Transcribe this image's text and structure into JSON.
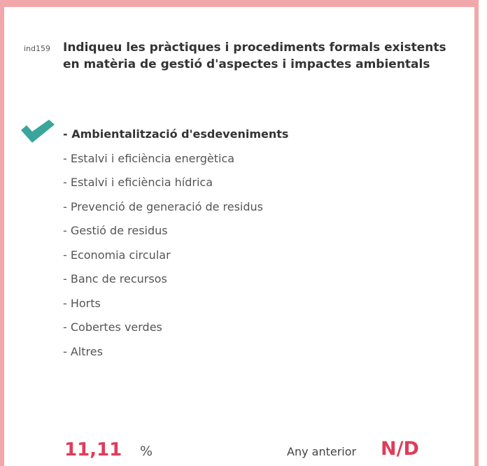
{
  "indicator": {
    "code": "ind159",
    "question": "Indiqueu les pràctiques i procediments formals existents en matèria de gestió d'aspectes i impactes ambientals",
    "options": [
      {
        "label": "- Ambientalització d'esdeveniments",
        "selected": true
      },
      {
        "label": "- Estalvi i eficiència energètica",
        "selected": false
      },
      {
        "label": "- Estalvi i eficiència hídrica",
        "selected": false
      },
      {
        "label": "- Prevenció de generació de residus",
        "selected": false
      },
      {
        "label": "- Gestió de residus",
        "selected": false
      },
      {
        "label": "- Economia circular",
        "selected": false
      },
      {
        "label": "- Banc de recursos",
        "selected": false
      },
      {
        "label": "- Horts",
        "selected": false
      },
      {
        "label": "- Cobertes verdes",
        "selected": false
      },
      {
        "label": "- Altres",
        "selected": false
      }
    ],
    "value": "11,11",
    "unit": "%",
    "previous_label": "Any anterior",
    "previous_value": "N/D"
  }
}
